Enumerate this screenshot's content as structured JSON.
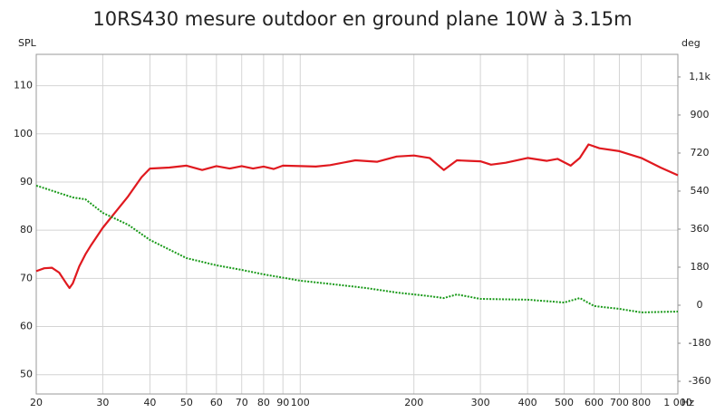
{
  "chart_data": {
    "type": "line",
    "title": "10RS430 mesure outdoor en ground plane 10W à 3.15m",
    "y_label": "SPL",
    "y2_label": "deg",
    "x_label": "Hz",
    "log_x": true,
    "grid": true,
    "xlim": [
      20,
      1000
    ],
    "xticks": [
      20,
      30,
      40,
      50,
      60,
      70,
      80,
      90,
      100,
      200,
      300,
      400,
      500,
      600,
      700,
      800,
      {
        "value": 1000,
        "label": "1 000"
      }
    ],
    "ylim": [
      46,
      116.5
    ],
    "yticks": [
      50,
      60,
      70,
      80,
      90,
      100,
      110
    ],
    "y2lim": [
      -420,
      1187
    ],
    "y2ticks": [
      -360,
      -180,
      0,
      180,
      360,
      540,
      720,
      900,
      {
        "value": 1080,
        "label": "1,1k"
      }
    ],
    "series": [
      {
        "color": "#e0191f",
        "axis": "y",
        "style": "solid",
        "x": [
          20,
          21,
          22,
          23,
          24,
          24.5,
          25,
          26,
          27,
          28,
          30,
          33,
          35,
          38,
          40,
          45,
          50,
          55,
          60,
          65,
          70,
          75,
          80,
          85,
          90,
          100,
          110,
          120,
          140,
          160,
          180,
          200,
          220,
          240,
          260,
          280,
          300,
          320,
          350,
          400,
          450,
          480,
          520,
          550,
          580,
          620,
          700,
          800,
          900,
          1000
        ],
        "values": [
          71.5,
          72.1,
          72.2,
          71.2,
          69,
          68,
          69,
          72.5,
          75,
          77,
          80.5,
          84.5,
          87,
          91,
          92.8,
          93,
          93.4,
          92.5,
          93.3,
          92.8,
          93.3,
          92.8,
          93.2,
          92.7,
          93.4,
          93.3,
          93.2,
          93.5,
          94.5,
          94.2,
          95.3,
          95.5,
          95,
          92.5,
          94.5,
          94.4,
          94.3,
          93.6,
          94,
          95,
          94.4,
          94.8,
          93.4,
          95,
          97.8,
          97,
          96.4,
          95,
          93,
          91.4
        ]
      },
      {
        "color": "#1a9a1a",
        "axis": "y2",
        "style": "dotted",
        "x": [
          20,
          25,
          27,
          30,
          35,
          40,
          50,
          60,
          70,
          80,
          100,
          130,
          150,
          180,
          220,
          240,
          260,
          300,
          400,
          500,
          550,
          600,
          700,
          800,
          1000
        ],
        "values": [
          566,
          510,
          501,
          437,
          381,
          309,
          223,
          189,
          167,
          146,
          116,
          94,
          81,
          60,
          43,
          34,
          51,
          30,
          26,
          13,
          34,
          -4,
          -17,
          -34,
          -30
        ]
      }
    ]
  }
}
